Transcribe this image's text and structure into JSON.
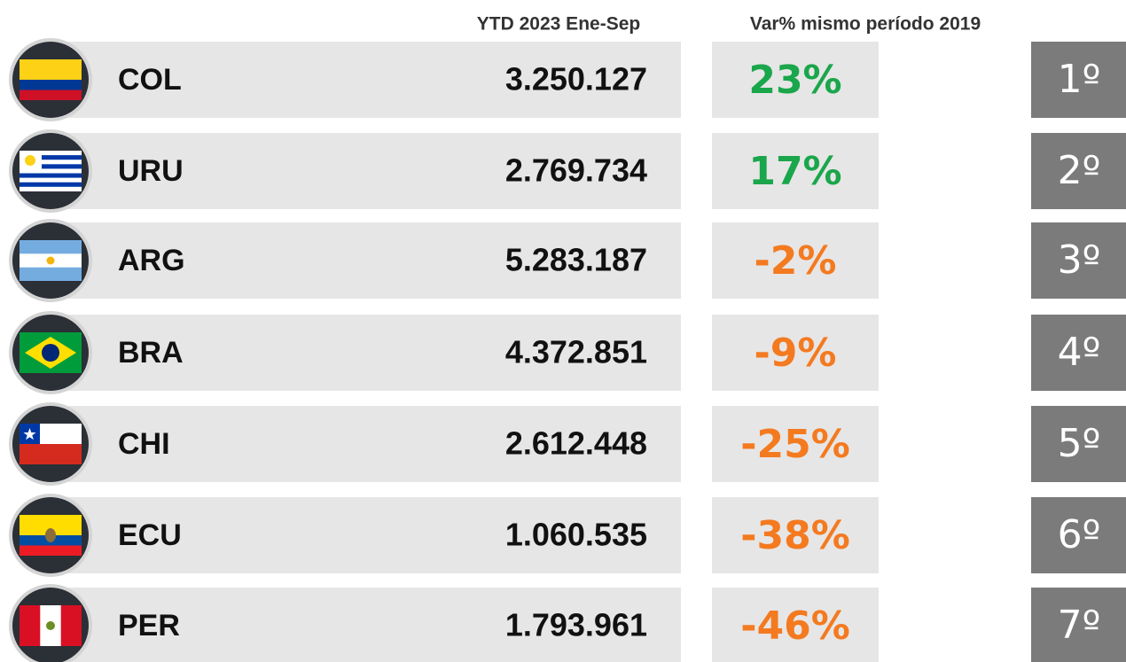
{
  "header": {
    "ytd": "YTD 2023 Ene-Sep",
    "var": "Var% mismo período 2019"
  },
  "rows": [
    {
      "code": "COL",
      "ytd": "3.250.127",
      "var": "23%",
      "var_color": "#1aa64b",
      "rank": "1º"
    },
    {
      "code": "URU",
      "ytd": "2.769.734",
      "var": "17%",
      "var_color": "#1aa64b",
      "rank": "2º"
    },
    {
      "code": "ARG",
      "ytd": "5.283.187",
      "var": "-2%",
      "var_color": "#f47a20",
      "rank": "3º"
    },
    {
      "code": "BRA",
      "ytd": "4.372.851",
      "var": "-9%",
      "var_color": "#f47a20",
      "rank": "4º"
    },
    {
      "code": "CHI",
      "ytd": "2.612.448",
      "var": "-25%",
      "var_color": "#f47a20",
      "rank": "5º"
    },
    {
      "code": "ECU",
      "ytd": "1.060.535",
      "var": "-38%",
      "var_color": "#f47a20",
      "rank": "6º"
    },
    {
      "code": "PER",
      "ytd": "1.793.961",
      "var": "-46%",
      "var_color": "#f47a20",
      "rank": "7º"
    }
  ]
}
